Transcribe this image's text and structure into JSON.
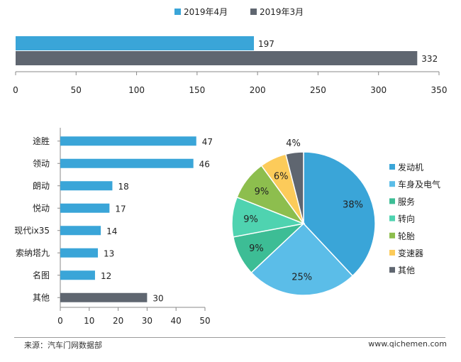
{
  "chart_data": [
    {
      "type": "bar",
      "orientation": "horizontal",
      "categories": [
        ""
      ],
      "series": [
        {
          "name": "2019年4月",
          "values": [
            197
          ],
          "color": "#3aa5d8"
        },
        {
          "name": "2019年3月",
          "values": [
            332
          ],
          "color": "#5f6670"
        }
      ],
      "xlim": [
        0,
        350
      ],
      "xticks": [
        "0",
        "50",
        "100",
        "150",
        "200",
        "250",
        "300",
        "350"
      ],
      "legend": "top-center",
      "grid": false
    },
    {
      "type": "bar",
      "orientation": "horizontal",
      "categories": [
        "途胜",
        "领动",
        "朗动",
        "悦动",
        "现代ix35",
        "索纳塔九",
        "名图",
        "其他"
      ],
      "values": [
        47,
        46,
        18,
        17,
        14,
        13,
        12,
        30
      ],
      "colors": [
        "#3aa5d8",
        "#3aa5d8",
        "#3aa5d8",
        "#3aa5d8",
        "#3aa5d8",
        "#3aa5d8",
        "#3aa5d8",
        "#5f6670"
      ],
      "xlim": [
        0,
        50
      ],
      "xticks": [
        "0",
        "10",
        "20",
        "30",
        "40",
        "50"
      ],
      "grid": false
    },
    {
      "type": "pie",
      "labels": [
        "发动机",
        "车身及电气",
        "服务",
        "转向",
        "轮胎",
        "变速器",
        "其他"
      ],
      "values": [
        38,
        25,
        9,
        9,
        9,
        6,
        4
      ],
      "value_labels": [
        "38%",
        "25%",
        "9%",
        "9%",
        "9%",
        "6%",
        "4%"
      ],
      "colors": [
        "#3aa5d8",
        "#5bbde8",
        "#3dbd95",
        "#4fd3b0",
        "#8dbe4e",
        "#fccb5a",
        "#5f6670"
      ],
      "legend": "right"
    }
  ],
  "footer": {
    "source": "来源：汽车门网数据部",
    "website": "www.qichemen.com"
  }
}
